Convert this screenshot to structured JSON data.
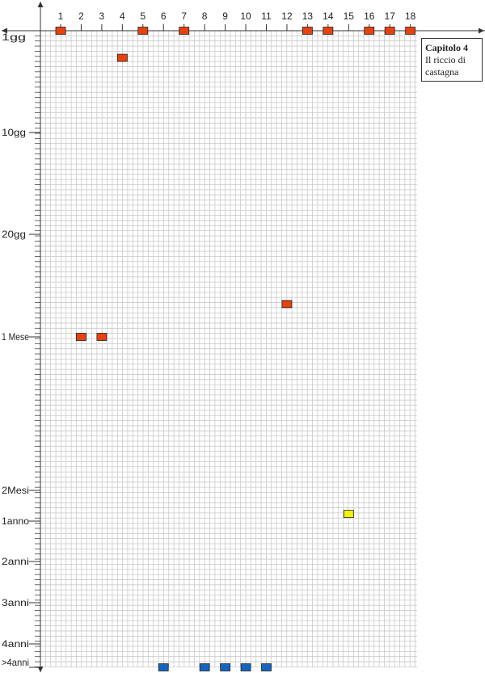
{
  "chart_data": {
    "type": "scatter",
    "title": "",
    "x_ticks": [
      "1",
      "2",
      "3",
      "4",
      "5",
      "6",
      "7",
      "8",
      "9",
      "10",
      "11",
      "12",
      "13",
      "14",
      "15",
      "16",
      "17",
      "18"
    ],
    "y_ticks": [
      {
        "label": "1gg",
        "value": 1
      },
      {
        "label": "10gg",
        "value": 10
      },
      {
        "label": "20gg",
        "value": 20
      },
      {
        "label": "1 Mese",
        "value": 30
      },
      {
        "label": "2Mesi",
        "value": 45
      },
      {
        "label": "1anno",
        "value": 48
      },
      {
        "label": "2anni",
        "value": 52
      },
      {
        "label": "3anni",
        "value": 56
      },
      {
        "label": "4anni",
        "value": 60
      },
      {
        "label": ">4anni",
        "value": 62
      }
    ],
    "ylim": [
      0,
      62
    ],
    "grid": true,
    "series": [
      {
        "color": "#e8410f",
        "points": [
          {
            "x": 1,
            "y": 0
          },
          {
            "x": 2,
            "y": 30
          },
          {
            "x": 3,
            "y": 30
          },
          {
            "x": 4,
            "y": 3.4
          },
          {
            "x": 5,
            "y": 0
          },
          {
            "x": 7,
            "y": 0
          },
          {
            "x": 12,
            "y": 26.8
          },
          {
            "x": 13,
            "y": 0
          },
          {
            "x": 14,
            "y": 0
          },
          {
            "x": 16,
            "y": 0
          },
          {
            "x": 17,
            "y": 0.9
          },
          {
            "x": 18,
            "y": 0
          }
        ]
      },
      {
        "color": "#f2f20a",
        "points": [
          {
            "x": 15,
            "y": 47.3
          }
        ]
      },
      {
        "color": "#1565c0",
        "points": [
          {
            "x": 6,
            "y": 62
          },
          {
            "x": 8,
            "y": 62
          },
          {
            "x": 9,
            "y": 62
          },
          {
            "x": 10,
            "y": 62
          },
          {
            "x": 11,
            "y": 62
          }
        ]
      }
    ],
    "legend": {
      "position": "top-right",
      "title": "Capitolo 4",
      "subtitle": "Il riccio di castagna"
    }
  }
}
